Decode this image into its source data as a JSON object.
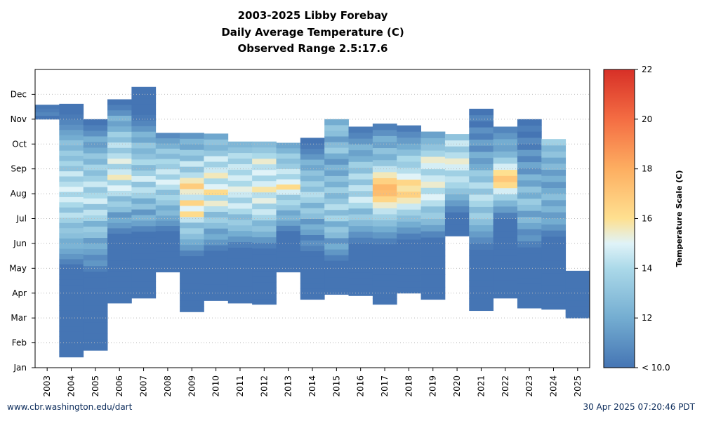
{
  "chart_data": {
    "type": "heatmap",
    "title": "2003-2025 Libby Forebay",
    "subtitle": "Daily Average Temperature (C)",
    "subtitle2": "Observed Range 2.5:17.6",
    "x_categories": [
      "2003",
      "2004",
      "2005",
      "2006",
      "2007",
      "2008",
      "2009",
      "2010",
      "2011",
      "2012",
      "2013",
      "2014",
      "2015",
      "2016",
      "2017",
      "2018",
      "2019",
      "2020",
      "2021",
      "2022",
      "2023",
      "2024",
      "2025"
    ],
    "y_ticks": [
      "Jan",
      "Feb",
      "Mar",
      "Apr",
      "May",
      "Jun",
      "Jul",
      "Aug",
      "Sep",
      "Oct",
      "Nov",
      "Dec"
    ],
    "colorbar_label": "Temperature Scale (C)",
    "colorbar_ticks": [
      "< 10.0",
      "12",
      "14",
      "16",
      "18",
      "20",
      "22"
    ],
    "colorbar_range": [
      10,
      22
    ],
    "grid": "horizontal dotted",
    "series": [
      {
        "year": "2003",
        "start_month": 10.0,
        "end_month": 10.58,
        "temps": [
          10.0,
          10.6,
          10.3,
          10.1
        ]
      },
      {
        "year": "2004",
        "start_month": 0.43,
        "end_month": 10.62,
        "temps": [
          10,
          10,
          10,
          10,
          10,
          10,
          10,
          10,
          10,
          10,
          10,
          10,
          10,
          10,
          10,
          10,
          10,
          10,
          10.5,
          11.2,
          11.8,
          12.3,
          12.0,
          12.8,
          13.2,
          12.6,
          13.6,
          14.3,
          13.0,
          14.0,
          14.8,
          13.8,
          15.0,
          14.2,
          13.4,
          14.6,
          13.0,
          13.8,
          12.8,
          13.4,
          12.4,
          12.9,
          12.0,
          11.6,
          11.0,
          10.6,
          10.2,
          10.0,
          10.0
        ]
      },
      {
        "year": "2005",
        "start_month": 0.7,
        "end_month": 10.0,
        "temps": [
          10,
          10,
          10,
          10,
          10,
          10,
          10,
          10,
          10,
          10,
          10,
          10,
          10,
          10,
          10.4,
          11.2,
          10.8,
          11.6,
          12.2,
          11.4,
          12.9,
          13.4,
          12.2,
          13.8,
          14.4,
          13.0,
          14.8,
          14.0,
          13.2,
          14.6,
          13.6,
          12.8,
          13.8,
          12.4,
          13.2,
          12.0,
          11.4,
          12.2,
          11.0,
          10.4,
          10.0
        ]
      },
      {
        "year": "2006",
        "start_month": 2.6,
        "end_month": 10.8,
        "temps": [
          10,
          10,
          10,
          10,
          10,
          10,
          10,
          10,
          10,
          10,
          10,
          10,
          10,
          10.5,
          11.4,
          12.0,
          11.2,
          12.8,
          13.5,
          12.6,
          14.2,
          15.0,
          13.8,
          15.6,
          14.6,
          13.6,
          15.2,
          14.2,
          13.2,
          14.4,
          12.8,
          13.6,
          12.2,
          11.6,
          12.4,
          11.0,
          10.4,
          10.0
        ]
      },
      {
        "year": "2007",
        "start_month": 2.8,
        "end_month": 11.3,
        "temps": [
          10,
          10,
          10,
          10,
          10,
          10,
          10,
          10,
          10,
          10,
          10,
          10,
          10.6,
          11.6,
          12.4,
          11.2,
          13.0,
          12.0,
          13.6,
          14.3,
          13.0,
          14.8,
          13.6,
          12.6,
          14.0,
          13.0,
          12.4,
          13.2,
          11.8,
          12.4,
          11.2,
          10.6,
          10.2,
          10.0,
          10.0,
          10.0,
          10.0,
          10.0
        ]
      },
      {
        "year": "2008",
        "start_month": 3.85,
        "end_month": 9.45,
        "temps": [
          10,
          10,
          10,
          10,
          10,
          10,
          10,
          10,
          10.4,
          11.2,
          11.8,
          12.6,
          12.0,
          13.2,
          13.8,
          12.8,
          14.2,
          15.0,
          13.6,
          14.6,
          13.4,
          14.0,
          12.6,
          13.4,
          12.2,
          11.6,
          10.8
        ]
      },
      {
        "year": "2009",
        "start_month": 2.25,
        "end_month": 9.45,
        "temps": [
          10,
          10,
          10,
          10,
          10,
          10,
          10,
          10,
          10,
          10,
          10.5,
          11.4,
          12.0,
          12.8,
          13.6,
          12.6,
          14.4,
          16.2,
          15.0,
          16.5,
          14.4,
          15.4,
          16.8,
          15.6,
          14.2,
          13.0,
          14.6,
          12.6,
          13.4,
          11.8,
          12.4,
          11.2
        ]
      },
      {
        "year": "2010",
        "start_month": 2.7,
        "end_month": 9.42,
        "temps": [
          10,
          10,
          10,
          10,
          10,
          10,
          10,
          10,
          10,
          10.4,
          11.2,
          12.0,
          11.4,
          12.8,
          13.6,
          12.6,
          14.2,
          15.4,
          14.0,
          16.2,
          15.0,
          14.0,
          15.6,
          14.6,
          13.6,
          14.8,
          13.2,
          12.4,
          13.0,
          11.8
        ]
      },
      {
        "year": "2011",
        "start_month": 2.6,
        "end_month": 9.1,
        "temps": [
          10,
          10,
          10,
          10,
          10,
          10,
          10,
          10,
          10,
          10,
          10.4,
          11.2,
          12.0,
          12.8,
          13.4,
          12.6,
          14.0,
          14.8,
          13.6,
          14.6,
          15.2,
          14.0,
          14.8,
          13.8,
          14.6,
          13.4,
          14.2,
          13.0,
          12.4
        ]
      },
      {
        "year": "2012",
        "start_month": 2.55,
        "end_month": 9.1,
        "temps": [
          10,
          10,
          10,
          10,
          10,
          10,
          10,
          10,
          10,
          10,
          10.4,
          11.2,
          12.2,
          13.0,
          12.4,
          13.8,
          14.6,
          13.6,
          15.2,
          14.2,
          15.8,
          14.8,
          13.8,
          15.0,
          14.2,
          15.4,
          14.0,
          13.2,
          12.6
        ]
      },
      {
        "year": "2013",
        "start_month": 3.85,
        "end_month": 9.05,
        "temps": [
          10,
          10,
          10,
          10,
          10,
          10,
          10,
          10,
          10.6,
          11.6,
          12.4,
          11.8,
          13.2,
          14.0,
          13.2,
          14.8,
          16.2,
          15.0,
          13.8,
          14.6,
          13.4,
          12.8,
          13.6,
          12.4,
          11.8
        ]
      },
      {
        "year": "2014",
        "start_month": 2.75,
        "end_month": 9.25,
        "temps": [
          10,
          10,
          10,
          10,
          10,
          10,
          10,
          10,
          10,
          10.5,
          11.0,
          10.4,
          11.6,
          12.2,
          11.2,
          12.8,
          13.4,
          12.2,
          13.6,
          14.2,
          12.8,
          13.6,
          12.4,
          13.0,
          11.8,
          12.4,
          11.2,
          10.6,
          10.2,
          10.0
        ]
      },
      {
        "year": "2015",
        "start_month": 2.95,
        "end_month": 10.0,
        "temps": [
          10,
          10,
          10,
          10,
          10,
          10,
          10.4,
          11.2,
          12.0,
          11.0,
          12.6,
          13.2,
          12.0,
          13.8,
          12.6,
          14.2,
          13.2,
          12.4,
          13.6,
          12.2,
          13.0,
          11.6,
          12.4,
          11.2,
          12.0,
          13.4,
          12.6,
          11.4,
          12.8,
          13.2,
          12.0
        ]
      },
      {
        "year": "2016",
        "start_month": 2.9,
        "end_month": 9.7,
        "temps": [
          10,
          10,
          10,
          10,
          10,
          10,
          10,
          10,
          10,
          10.4,
          11.0,
          11.8,
          12.6,
          13.4,
          12.4,
          14.0,
          14.8,
          13.4,
          14.4,
          13.0,
          14.2,
          12.8,
          13.6,
          12.2,
          11.6,
          12.4,
          11.2,
          10.6,
          10.2
        ]
      },
      {
        "year": "2017",
        "start_month": 2.55,
        "end_month": 9.82,
        "temps": [
          10,
          10,
          10,
          10,
          10,
          10,
          10,
          10,
          10,
          10,
          10.4,
          11.2,
          12.0,
          12.8,
          13.6,
          14.4,
          15.4,
          16.4,
          17.4,
          17.6,
          16.6,
          15.6,
          14.4,
          13.2,
          12.2,
          13.0,
          11.6,
          12.2,
          11.0,
          10.4
        ]
      },
      {
        "year": "2018",
        "start_month": 3.0,
        "end_month": 9.75,
        "temps": [
          10,
          10,
          10,
          10,
          10,
          10,
          10,
          10,
          10,
          10.4,
          11.2,
          12.0,
          12.8,
          13.6,
          14.6,
          15.6,
          16.6,
          15.8,
          16.4,
          15.0,
          14.2,
          13.4,
          14.0,
          12.8,
          12.0,
          11.4,
          10.8,
          10.2
        ]
      },
      {
        "year": "2019",
        "start_month": 2.75,
        "end_month": 9.5,
        "temps": [
          10,
          10,
          10,
          10,
          10,
          10,
          10,
          10,
          10,
          10,
          10.6,
          11.6,
          12.6,
          13.4,
          12.8,
          14.2,
          15.0,
          14.0,
          15.4,
          14.6,
          13.6,
          14.8,
          15.4,
          13.8,
          13.0,
          12.4,
          11.6
        ]
      },
      {
        "year": "2020",
        "start_month": 5.3,
        "end_month": 9.4,
        "temps": [
          10,
          10,
          10,
          10,
          10.6,
          11.4,
          12.2,
          13.0,
          13.8,
          14.4,
          13.6,
          14.8,
          15.4,
          14.2,
          13.2,
          14.6,
          13.0
        ]
      },
      {
        "year": "2021",
        "start_month": 2.3,
        "end_month": 10.42,
        "temps": [
          10,
          10,
          10,
          10,
          10,
          10,
          10,
          10,
          10,
          10,
          10.2,
          10.8,
          11.4,
          12.0,
          12.8,
          13.6,
          12.6,
          13.8,
          14.4,
          13.0,
          14.2,
          12.8,
          13.4,
          12.0,
          11.4,
          12.2,
          10.8,
          11.6,
          10.4,
          11.0,
          10.0,
          10.6,
          10.0
        ]
      },
      {
        "year": "2022",
        "start_month": 2.8,
        "end_month": 9.7,
        "temps": [
          10,
          10,
          10,
          10,
          10,
          10,
          10,
          10,
          10,
          10,
          10,
          10,
          10,
          10.4,
          11.4,
          12.4,
          13.6,
          14.8,
          16.2,
          17.0,
          16.0,
          14.8,
          13.6,
          12.4,
          11.6,
          12.0,
          11.2,
          10.6
        ]
      },
      {
        "year": "2023",
        "start_month": 2.4,
        "end_month": 10.0,
        "temps": [
          10,
          10,
          10,
          10,
          10,
          10,
          10,
          10,
          10,
          10,
          10.4,
          11.2,
          10.8,
          11.8,
          12.6,
          11.4,
          12.8,
          13.4,
          12.0,
          13.0,
          11.6,
          12.4,
          11.0,
          11.8,
          10.6,
          11.4,
          10.2,
          10.8,
          10.0,
          10.4,
          10.0
        ]
      },
      {
        "year": "2024",
        "start_month": 2.35,
        "end_month": 9.2,
        "temps": [
          10,
          10,
          10,
          10,
          10,
          10,
          10,
          10,
          10,
          10,
          10,
          10,
          10.4,
          11.2,
          12.0,
          11.4,
          12.4,
          11.6,
          12.8,
          12.0,
          11.2,
          12.2,
          11.4,
          12.6,
          11.8,
          13.0,
          12.4,
          13.6
        ]
      },
      {
        "year": "2025",
        "start_month": 2.0,
        "end_month": 3.9,
        "temps": [
          10,
          10,
          10,
          10,
          10,
          10,
          10,
          10
        ]
      }
    ]
  },
  "footer": {
    "left": "www.cbr.washington.edu/dart",
    "right": "30 Apr 2025 07:20:46 PDT"
  }
}
